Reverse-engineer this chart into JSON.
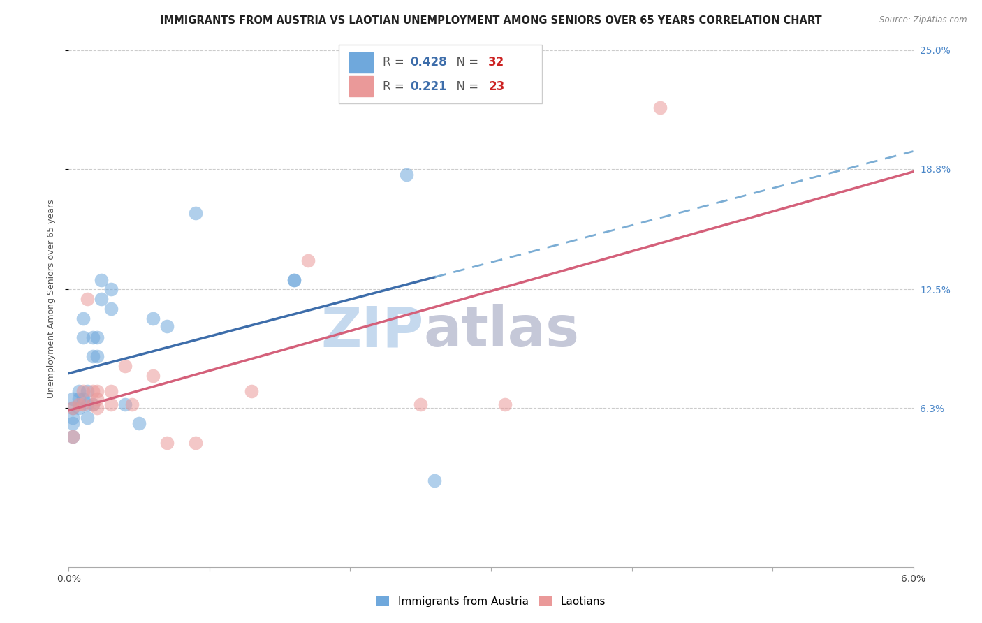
{
  "title": "IMMIGRANTS FROM AUSTRIA VS LAOTIAN UNEMPLOYMENT AMONG SENIORS OVER 65 YEARS CORRELATION CHART",
  "source": "Source: ZipAtlas.com",
  "ylabel": "Unemployment Among Seniors over 65 years",
  "xlim": [
    0.0,
    0.06
  ],
  "ylim": [
    -0.02,
    0.26
  ],
  "yticks_right": [
    0.063,
    0.125,
    0.188,
    0.25
  ],
  "yticks_right_labels": [
    "6.3%",
    "12.5%",
    "18.8%",
    "25.0%"
  ],
  "xtick_labels": [
    "0.0%",
    "",
    "",
    "",
    "",
    "",
    "6.0%"
  ],
  "austria_R": 0.428,
  "austria_N": 32,
  "laotian_R": 0.221,
  "laotian_N": 23,
  "austria_color": "#6fa8dc",
  "laotian_color": "#ea9999",
  "austria_line_color": "#3d6daa",
  "laotian_line_color": "#d4607a",
  "dashed_line_color": "#7badd4",
  "watermark_zip_color": "#c5d9ee",
  "watermark_atlas_color": "#c5c8d8",
  "background_color": "#ffffff",
  "austria_x": [
    0.0003,
    0.0003,
    0.0003,
    0.0003,
    0.0003,
    0.0007,
    0.0007,
    0.0007,
    0.001,
    0.001,
    0.001,
    0.0013,
    0.0013,
    0.0013,
    0.0017,
    0.0017,
    0.0017,
    0.002,
    0.002,
    0.0023,
    0.0023,
    0.003,
    0.003,
    0.004,
    0.005,
    0.006,
    0.007,
    0.009,
    0.016,
    0.016,
    0.024,
    0.026
  ],
  "austria_y": [
    0.063,
    0.068,
    0.058,
    0.055,
    0.048,
    0.072,
    0.068,
    0.063,
    0.11,
    0.1,
    0.068,
    0.072,
    0.065,
    0.058,
    0.1,
    0.09,
    0.065,
    0.1,
    0.09,
    0.13,
    0.12,
    0.125,
    0.115,
    0.065,
    0.055,
    0.11,
    0.106,
    0.165,
    0.13,
    0.13,
    0.185,
    0.025
  ],
  "laotian_x": [
    0.0003,
    0.0003,
    0.0007,
    0.001,
    0.001,
    0.0013,
    0.0017,
    0.0017,
    0.002,
    0.002,
    0.002,
    0.003,
    0.003,
    0.004,
    0.0045,
    0.006,
    0.007,
    0.009,
    0.013,
    0.017,
    0.025,
    0.031,
    0.042
  ],
  "laotian_y": [
    0.063,
    0.048,
    0.065,
    0.072,
    0.065,
    0.12,
    0.072,
    0.065,
    0.072,
    0.068,
    0.063,
    0.072,
    0.065,
    0.085,
    0.065,
    0.08,
    0.045,
    0.045,
    0.072,
    0.14,
    0.065,
    0.065,
    0.22
  ],
  "grid_color": "#cccccc",
  "title_fontsize": 10.5,
  "axis_label_fontsize": 9,
  "tick_fontsize": 10,
  "legend_fontsize": 12
}
